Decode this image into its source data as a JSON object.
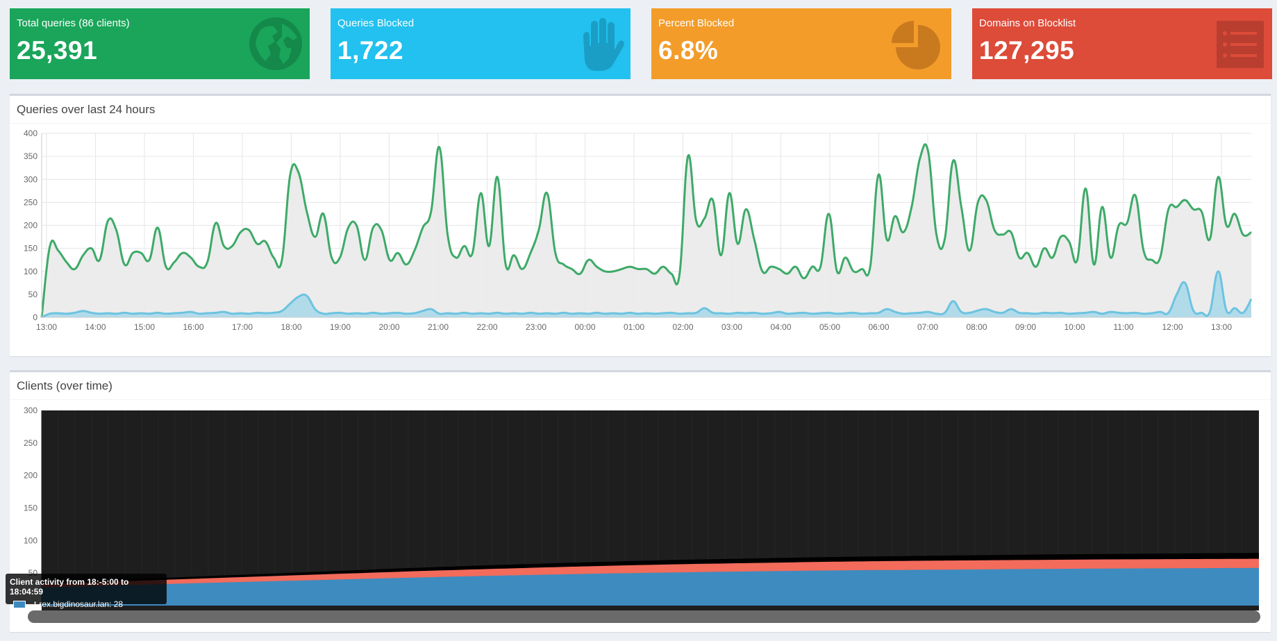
{
  "stats": [
    {
      "label": "Total queries (86 clients)",
      "value": "25,391",
      "color": "#1aa55a",
      "icon": "globe-icon"
    },
    {
      "label": "Queries Blocked",
      "value": "1,722",
      "color": "#22c1ef",
      "icon": "hand-icon"
    },
    {
      "label": "Percent Blocked",
      "value": "6.8%",
      "color": "#f39c2a",
      "icon": "pie-chart-icon"
    },
    {
      "label": "Domains on Blocklist",
      "value": "127,295",
      "color": "#dd4b39",
      "icon": "list-icon"
    }
  ],
  "queries_panel": {
    "title": "Queries over last 24 hours"
  },
  "clients_panel": {
    "title": "Clients (over time)"
  },
  "tooltip": {
    "title": "Client activity from 18:-5:00 to 18:04:59",
    "entry": "t-rex.bigdinosaur.lan: 28",
    "swatch_color": "#3e8bbf"
  },
  "chart_data": [
    {
      "type": "area",
      "ylim": [
        0,
        400
      ],
      "yticks": [
        "0",
        "50",
        "100",
        "150",
        "200",
        "250",
        "300",
        "350",
        "400"
      ],
      "xticks": [
        "13:00",
        "14:00",
        "15:00",
        "16:00",
        "17:00",
        "18:00",
        "19:00",
        "20:00",
        "21:00",
        "22:00",
        "23:00",
        "00:00",
        "01:00",
        "02:00",
        "03:00",
        "04:00",
        "05:00",
        "06:00",
        "07:00",
        "08:00",
        "09:00",
        "10:00",
        "11:00",
        "12:00",
        "13:00"
      ],
      "grid": true,
      "series": [
        {
          "color": "#3daa68",
          "fill": "#eaeaea",
          "values": [
            0,
            155,
            145,
            120,
            105,
            135,
            150,
            125,
            210,
            190,
            115,
            140,
            140,
            125,
            195,
            110,
            120,
            140,
            130,
            110,
            120,
            205,
            155,
            155,
            185,
            190,
            160,
            165,
            130,
            125,
            310,
            315,
            230,
            175,
            225,
            130,
            130,
            195,
            200,
            125,
            195,
            190,
            125,
            140,
            115,
            145,
            195,
            230,
            370,
            180,
            130,
            155,
            140,
            270,
            155,
            305,
            115,
            135,
            105,
            140,
            190,
            270,
            140,
            115,
            105,
            95,
            125,
            110,
            100,
            100,
            105,
            110,
            105,
            105,
            95,
            110,
            95,
            95,
            350,
            210,
            215,
            255,
            135,
            270,
            160,
            235,
            170,
            100,
            110,
            105,
            95,
            110,
            85,
            110,
            110,
            225,
            100,
            130,
            100,
            105,
            110,
            310,
            170,
            220,
            185,
            240,
            345,
            360,
            180,
            170,
            340,
            240,
            145,
            250,
            255,
            190,
            180,
            185,
            130,
            140,
            110,
            150,
            130,
            175,
            165,
            125,
            280,
            115,
            240,
            130,
            200,
            205,
            265,
            145,
            125,
            130,
            235,
            240,
            255,
            235,
            230,
            170,
            305,
            200,
            225,
            180,
            185
          ]
        },
        {
          "color": "#6cc3e0",
          "fill": "#a8d8ea",
          "values": [
            0,
            8,
            9,
            8,
            10,
            14,
            10,
            8,
            9,
            8,
            10,
            8,
            9,
            8,
            10,
            8,
            9,
            10,
            12,
            8,
            9,
            10,
            12,
            8,
            9,
            8,
            10,
            9,
            10,
            14,
            30,
            45,
            47,
            18,
            8,
            9,
            10,
            8,
            9,
            8,
            10,
            8,
            9,
            10,
            8,
            9,
            14,
            18,
            8,
            9,
            8,
            10,
            8,
            9,
            8,
            10,
            8,
            9,
            8,
            10,
            8,
            9,
            8,
            10,
            8,
            9,
            8,
            10,
            8,
            9,
            8,
            10,
            8,
            9,
            8,
            9,
            10,
            8,
            9,
            10,
            20,
            10,
            9,
            8,
            10,
            9,
            10,
            8,
            9,
            12,
            8,
            9,
            10,
            8,
            9,
            10,
            8,
            9,
            10,
            8,
            9,
            10,
            18,
            12,
            8,
            9,
            10,
            12,
            8,
            10,
            35,
            12,
            10,
            15,
            18,
            12,
            10,
            18,
            10,
            9,
            8,
            10,
            9,
            10,
            8,
            9,
            10,
            12,
            8,
            12,
            10,
            9,
            10,
            8,
            9,
            12,
            10,
            50,
            75,
            15,
            10,
            12,
            100,
            15,
            20,
            10,
            40
          ]
        }
      ]
    },
    {
      "type": "area",
      "ylim": [
        0,
        300
      ],
      "yticks": [
        "50",
        "100",
        "150",
        "200",
        "250",
        "300"
      ],
      "stacked": true,
      "series": [
        {
          "color": "#3e8bbf",
          "values": [
            28,
            38,
            47,
            53,
            56,
            58
          ]
        },
        {
          "color": "#f26b5b",
          "values": [
            5,
            8,
            11,
            13,
            14,
            14
          ]
        },
        {
          "color": "#000000",
          "values": [
            2,
            4,
            6,
            7,
            8,
            9
          ]
        }
      ]
    }
  ]
}
